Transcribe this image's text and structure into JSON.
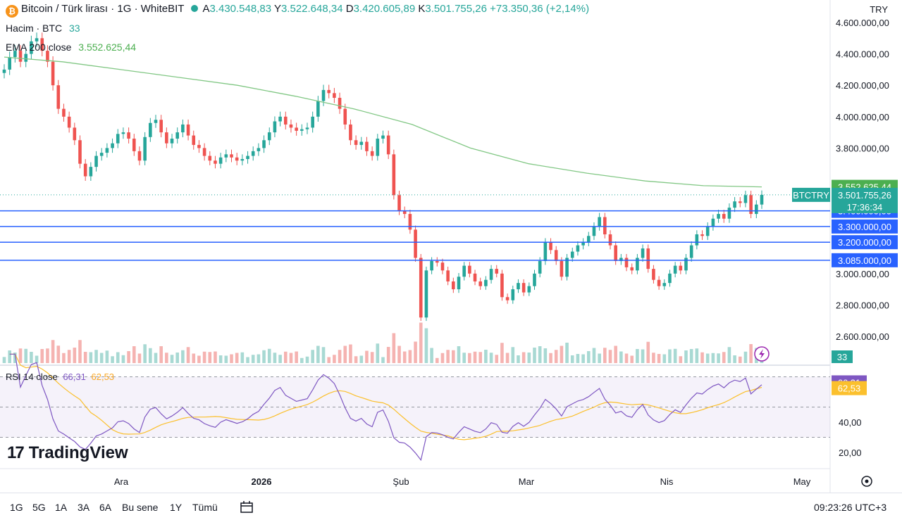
{
  "header": {
    "coin_icon": "bitcoin-icon",
    "title": "Bitcoin / Türk lirası · 1G · WhiteBIT",
    "ohlc": [
      {
        "label": "A",
        "value": "3.430.548,83"
      },
      {
        "label": "Y",
        "value": "3.522.648,34"
      },
      {
        "label": "D",
        "value": "3.420.605,89"
      },
      {
        "label": "K",
        "value": "3.501.755,26"
      }
    ],
    "change": "+73.350,36 (+2,14%)",
    "currency": "TRY"
  },
  "indicators": {
    "volume_label": "Hacim · BTC",
    "volume_value": "33",
    "ema_label": "EMA 200 close",
    "ema_value": "3.552.625,44",
    "rsi_label": "RSI 14 close",
    "rsi_value": "66,31",
    "rsi_ma_value": "62,53"
  },
  "price_tags": {
    "ema": "3.552.625,44",
    "symbol": "BTCTRY",
    "last": "3.501.755,26",
    "countdown": "17:36:34",
    "volume": "33",
    "rsi": "66,31",
    "rsi_ma": "62,53"
  },
  "colors": {
    "up": "#26a69a",
    "down": "#ef5350",
    "ema": "#81c784",
    "hline": "#2962ff",
    "rsi": "#7e57c2",
    "rsi_ma": "#fbc02d"
  },
  "chart_data": {
    "type": "candlestick",
    "y_axis_labels": [
      "4.600.000,00",
      "4.400.000,00",
      "4.200.000,00",
      "4.000.000,00",
      "3.800.000,00",
      "2.800.000,00",
      "2.600.000,00",
      "3.000.000,00"
    ],
    "y_axis_values": [
      4600000,
      4400000,
      4200000,
      4000000,
      3800000,
      2800000,
      2600000,
      3000000
    ],
    "ylim": [
      2550000,
      4640000
    ],
    "x_tick_labels": [
      "Ara",
      "2026",
      "Şub",
      "Mar",
      "Nis",
      "May"
    ],
    "horizontal_levels": [
      {
        "value": 3400000,
        "label": "3.400.000,00"
      },
      {
        "value": 3300000,
        "label": "3.300.000,00"
      },
      {
        "value": 3200000,
        "label": "3.200.000,00"
      },
      {
        "value": 3085000,
        "label": "3.085.000,00"
      }
    ],
    "last_close": 3501755.26,
    "ema200_last": 3552625.44,
    "closes": [
      4300000,
      4380000,
      4420000,
      4350000,
      4400000,
      4480000,
      4500000,
      4420000,
      4350000,
      4200000,
      4050000,
      4000000,
      3930000,
      3850000,
      3700000,
      3620000,
      3680000,
      3750000,
      3770000,
      3800000,
      3830000,
      3890000,
      3900000,
      3860000,
      3780000,
      3720000,
      3870000,
      3960000,
      3980000,
      3900000,
      3830000,
      3860000,
      3900000,
      3950000,
      3880000,
      3820000,
      3800000,
      3750000,
      3720000,
      3700000,
      3740000,
      3760000,
      3740000,
      3720000,
      3730000,
      3750000,
      3780000,
      3800000,
      3850000,
      3900000,
      3970000,
      4000000,
      3950000,
      3930000,
      3910000,
      3920000,
      3930000,
      4000000,
      4100000,
      4170000,
      4150000,
      4120000,
      4050000,
      3950000,
      3850000,
      3820000,
      3840000,
      3780000,
      3750000,
      3860000,
      3880000,
      3760000,
      3500000,
      3400000,
      3380000,
      3280000,
      3100000,
      2720000,
      3020000,
      3080000,
      3070000,
      3020000,
      2950000,
      2900000,
      2980000,
      3050000,
      3000000,
      2950000,
      2920000,
      2960000,
      3030000,
      3000000,
      2850000,
      2830000,
      2900000,
      2940000,
      2880000,
      2920000,
      3000000,
      3080000,
      3200000,
      3150000,
      3080000,
      2980000,
      3100000,
      3140000,
      3180000,
      3200000,
      3240000,
      3300000,
      3360000,
      3250000,
      3180000,
      3080000,
      3100000,
      3040000,
      3020000,
      3100000,
      3160000,
      3030000,
      2960000,
      2920000,
      2940000,
      3000000,
      3050000,
      3020000,
      3100000,
      3180000,
      3250000,
      3240000,
      3300000,
      3350000,
      3380000,
      3350000,
      3420000,
      3460000,
      3450000,
      3500000,
      3380000,
      3440000,
      3501755
    ],
    "ema200": [
      4380000,
      4350000,
      4300000,
      4250000,
      4200000,
      4130000,
      4050000,
      3950000,
      3800000,
      3700000,
      3640000,
      3590000,
      3560000,
      3552625
    ],
    "volume_bars": 141,
    "rsi_axis_labels": [
      "40,00",
      "20,00"
    ],
    "rsi_axis_values": [
      40,
      20
    ],
    "rsi_bands": [
      70,
      30
    ],
    "rsi_last": 66.31,
    "rsi_ma_last": 62.53
  },
  "toolbar": {
    "ranges": [
      "1G",
      "5G",
      "1A",
      "3A",
      "6A",
      "Bu sene",
      "1Y",
      "Tümü"
    ],
    "calendar_icon": "calendar-range-icon",
    "settings_icon": "settings-circle-icon",
    "clock": "09:23:26 UTC+3"
  },
  "branding": "TradingView"
}
